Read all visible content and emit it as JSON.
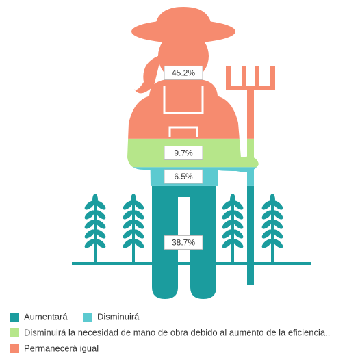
{
  "chart_data": {
    "type": "pictorial-stack",
    "series": [
      {
        "name": "Aumentará",
        "color": "#1b9c9e",
        "values": [
          38.7
        ],
        "value_labels": [
          "38.7%"
        ]
      },
      {
        "name": "Disminuirá",
        "color": "#5ccad0",
        "values": [
          6.5
        ],
        "value_labels": [
          "6.5%"
        ]
      },
      {
        "name": "Disminuirá la necesidad de mano de obra debido al aumento de la eficiencia..",
        "color": "#b6e68a",
        "values": [
          9.7
        ],
        "value_labels": [
          "9.7%"
        ]
      },
      {
        "name": "Permanecerá igual",
        "color": "#f68b6f",
        "values": [
          45.2
        ],
        "value_labels": [
          "45.2%"
        ]
      }
    ]
  }
}
